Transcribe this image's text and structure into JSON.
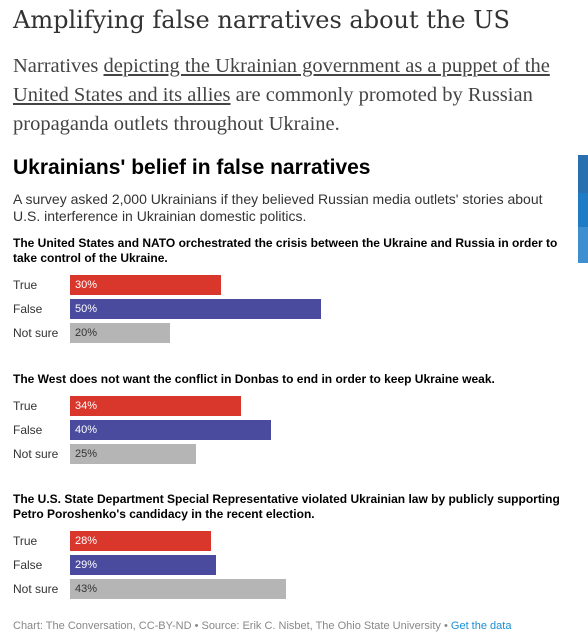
{
  "article": {
    "headline": "Amplifying false narratives about the US",
    "intro_before": "Narratives ",
    "intro_link": "depicting the Ukrainian government as a puppet of the United States and its allies",
    "intro_after": " are commonly promoted by Russian propaganda outlets throughout Ukraine."
  },
  "colors": {
    "true": "#d9362c",
    "false": "#4a4a9e",
    "not_sure": "#b5b5b5",
    "side_tab_dark": "#2a6fb0",
    "side_tab_light": "#3f8fd0",
    "link": "#1a8fd4"
  },
  "chart_data": {
    "type": "bar",
    "title": "Ukrainians' belief in false narratives",
    "subtitle": "A survey asked 2,000 Ukrainians if they believed Russian media outlets' stories about U.S. interference in Ukrainian domestic politics.",
    "categories": [
      "True",
      "False",
      "Not sure"
    ],
    "unit": "%",
    "panels": [
      {
        "question": "The United States and NATO orchestrated the crisis between the Ukraine and Russia in order to take control of the Ukraine.",
        "values": [
          30,
          50,
          20
        ]
      },
      {
        "question": "The West does not want the conflict in Donbas to end in order to keep Ukraine weak.",
        "values": [
          34,
          40,
          25
        ]
      },
      {
        "question": "The U.S. State Department Special Representative violated Ukrainian law by publicly supporting Petro Poroshenko's candidacy in the recent election.",
        "values": [
          28,
          29,
          43
        ]
      }
    ]
  },
  "footer": {
    "text": "Chart: The Conversation, CC-BY-ND • Source: Erik C. Nisbet, The Ohio State University • ",
    "link": "Get the data"
  }
}
